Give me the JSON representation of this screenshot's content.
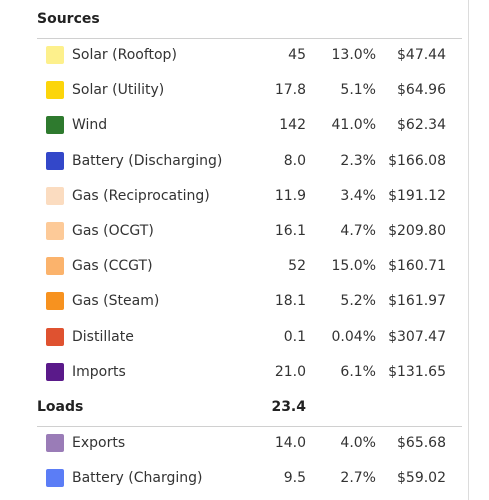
{
  "sections": [
    {
      "title": "Sources",
      "rows": [
        {
          "name": "Solar (Rooftop)",
          "color": "#fdf08c",
          "value": "45",
          "percent": "13.0%",
          "price": "$47.44"
        },
        {
          "name": "Solar (Utility)",
          "color": "#fcd50a",
          "value": "17.8",
          "percent": "5.1%",
          "price": "$64.96"
        },
        {
          "name": "Wind",
          "color": "#2e7a2e",
          "value": "142",
          "percent": "41.0%",
          "price": "$62.34"
        },
        {
          "name": "Battery (Discharging)",
          "color": "#3347c9",
          "value": "8.0",
          "percent": "2.3%",
          "price": "$166.08"
        },
        {
          "name": "Gas (Reciprocating)",
          "color": "#fbdcc0",
          "value": "11.9",
          "percent": "3.4%",
          "price": "$191.12"
        },
        {
          "name": "Gas (OCGT)",
          "color": "#fdca98",
          "value": "16.1",
          "percent": "4.7%",
          "price": "$209.80"
        },
        {
          "name": "Gas (CCGT)",
          "color": "#fbb36c",
          "value": "52",
          "percent": "15.0%",
          "price": "$160.71"
        },
        {
          "name": "Gas (Steam)",
          "color": "#f7921f",
          "value": "18.1",
          "percent": "5.2%",
          "price": "$161.97"
        },
        {
          "name": "Distillate",
          "color": "#df5230",
          "value": "0.1",
          "percent": "0.04%",
          "price": "$307.47"
        },
        {
          "name": "Imports",
          "color": "#5a1a8a",
          "value": "21.0",
          "percent": "6.1%",
          "price": "$131.65"
        }
      ]
    },
    {
      "title": "Loads",
      "total": "23.4",
      "rows": [
        {
          "name": "Exports",
          "color": "#9a7cb7",
          "value": "14.0",
          "percent": "4.0%",
          "price": "$65.68"
        },
        {
          "name": "Battery (Charging)",
          "color": "#5b7df6",
          "value": "9.5",
          "percent": "2.7%",
          "price": "$59.02"
        }
      ]
    }
  ]
}
